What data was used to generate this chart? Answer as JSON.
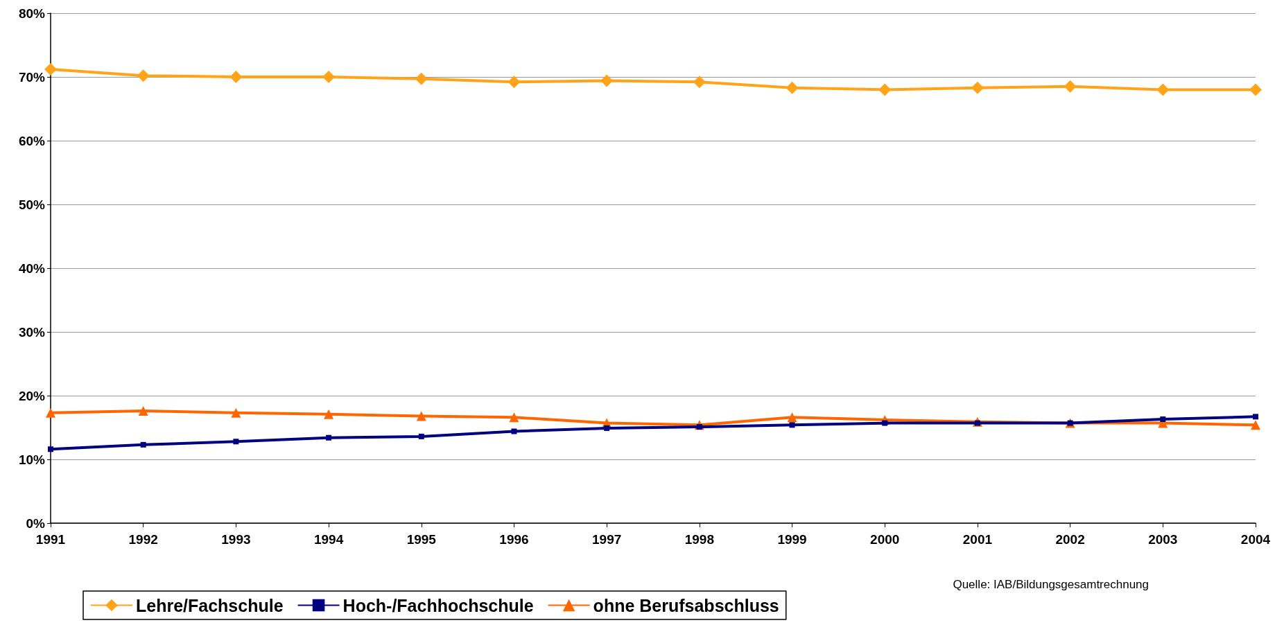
{
  "chart_data": {
    "type": "line",
    "categories": [
      "1991",
      "1992",
      "1993",
      "1994",
      "1995",
      "1996",
      "1997",
      "1998",
      "1999",
      "2000",
      "2001",
      "2002",
      "2003",
      "2004"
    ],
    "series": [
      {
        "name": "Lehre/Fachschule",
        "color": "#ffa319",
        "marker": "diamond",
        "values": [
          71.2,
          70.2,
          70.0,
          70.0,
          69.7,
          69.2,
          69.4,
          69.2,
          68.3,
          68.0,
          68.3,
          68.5,
          68.0,
          68.0
        ]
      },
      {
        "name": "Hoch-/Fachhochschule",
        "color": "#000080",
        "marker": "square",
        "values": [
          11.6,
          12.3,
          12.8,
          13.4,
          13.6,
          14.4,
          14.9,
          15.1,
          15.4,
          15.7,
          15.7,
          15.7,
          16.3,
          16.7
        ]
      },
      {
        "name": "ohne Berufsabschluss",
        "color": "#ff6600",
        "marker": "triangle",
        "values": [
          17.3,
          17.6,
          17.3,
          17.1,
          16.8,
          16.6,
          15.7,
          15.4,
          16.6,
          16.2,
          15.9,
          15.7,
          15.7,
          15.4
        ]
      }
    ],
    "ylim": [
      0,
      80
    ],
    "yticks": [
      {
        "value": 0,
        "label": "0%"
      },
      {
        "value": 10,
        "label": "10%"
      },
      {
        "value": 20,
        "label": "20%"
      },
      {
        "value": 30,
        "label": "30%"
      },
      {
        "value": 40,
        "label": "40%"
      },
      {
        "value": 50,
        "label": "50%"
      },
      {
        "value": 60,
        "label": "60%"
      },
      {
        "value": 70,
        "label": "70%"
      },
      {
        "value": 80,
        "label": "80%"
      }
    ],
    "grid": "y",
    "legend": "bottom left",
    "annotations": [
      "Quelle: IAB/Bildungsgesamtrechnung"
    ]
  }
}
